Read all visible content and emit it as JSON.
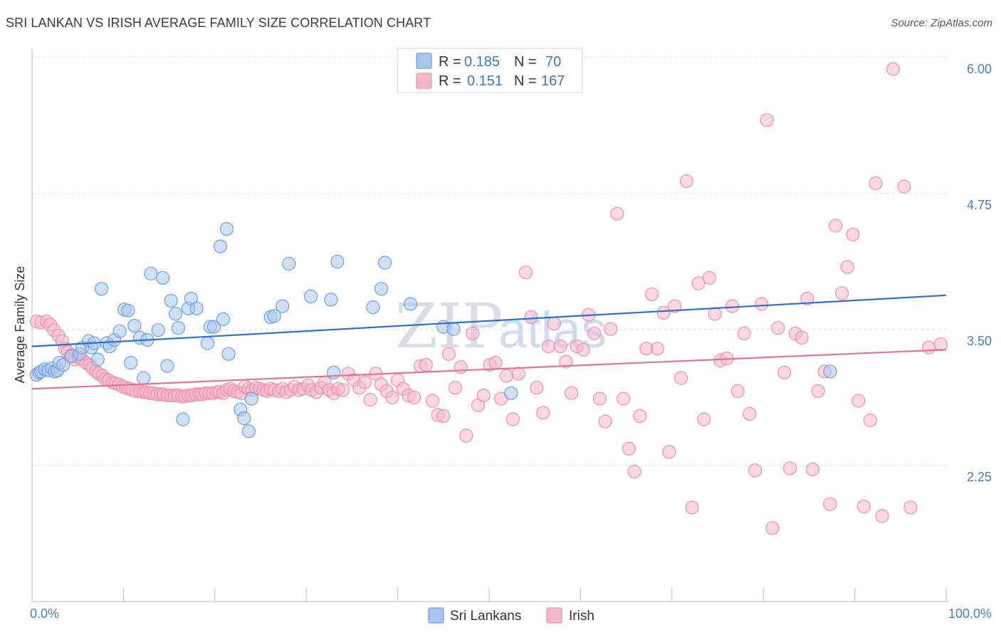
{
  "header": {
    "title": "SRI LANKAN VS IRISH AVERAGE FAMILY SIZE CORRELATION CHART",
    "source": "Source: ZipAtlas.com"
  },
  "watermark": {
    "zip": "ZIP",
    "atlas": "atlas"
  },
  "legend": {
    "rows": [
      {
        "r_label": "R =",
        "r_value": "0.185",
        "n_label": "N =",
        "n_value": "70"
      },
      {
        "r_label": "R =",
        "r_value": "0.151",
        "n_label": "N =",
        "n_value": "167"
      }
    ]
  },
  "bottom_legend": {
    "items": [
      "Sri Lankans",
      "Irish"
    ]
  },
  "colors": {
    "blue_fill": "#a9c6ee",
    "blue_stroke": "#6f9fdc",
    "blue_line": "#2f6fcc",
    "pink_fill": "#f5b8cb",
    "pink_stroke": "#ea8fae",
    "pink_line": "#e0739a",
    "tick_text": "#4a7cc9",
    "grid": "#d8d8d8"
  },
  "chart_data": {
    "type": "scatter",
    "title": "SRI LANKAN VS IRISH AVERAGE FAMILY SIZE CORRELATION CHART",
    "xlabel": "",
    "ylabel": "Average Family Size",
    "xlim": [
      0,
      100
    ],
    "ylim": [
      1.0,
      6.15
    ],
    "x_tick_labels": [
      "0.0%",
      "100.0%"
    ],
    "y_ticks": [
      2.25,
      3.5,
      4.75,
      6.0
    ],
    "y_tick_labels": [
      "2.25",
      "3.50",
      "4.75",
      "6.00"
    ],
    "grid": true,
    "legend_position": "top-center",
    "series": [
      {
        "name": "Sri Lankans",
        "r": 0.185,
        "n": 70,
        "trend": {
          "x0": 0,
          "y0": 3.45,
          "x1": 100,
          "y1": 3.92
        },
        "points": [
          [
            0.5,
            3.19
          ],
          [
            0.8,
            3.21
          ],
          [
            1.0,
            3.22
          ],
          [
            1.4,
            3.24
          ],
          [
            1.8,
            3.23
          ],
          [
            2.2,
            3.25
          ],
          [
            2.5,
            3.22
          ],
          [
            2.8,
            3.23
          ],
          [
            3.0,
            3.3
          ],
          [
            3.4,
            3.28
          ],
          [
            4.3,
            3.36
          ],
          [
            5.2,
            3.38
          ],
          [
            5.5,
            3.44
          ],
          [
            6.2,
            3.5
          ],
          [
            6.5,
            3.44
          ],
          [
            6.8,
            3.48
          ],
          [
            7.2,
            3.33
          ],
          [
            7.6,
            3.98
          ],
          [
            8.2,
            3.48
          ],
          [
            8.5,
            3.45
          ],
          [
            9.0,
            3.51
          ],
          [
            9.6,
            3.59
          ],
          [
            10.1,
            3.79
          ],
          [
            10.5,
            3.78
          ],
          [
            10.8,
            3.3
          ],
          [
            11.2,
            3.64
          ],
          [
            11.8,
            3.53
          ],
          [
            12.2,
            3.16
          ],
          [
            12.6,
            3.51
          ],
          [
            13.0,
            4.12
          ],
          [
            13.8,
            3.6
          ],
          [
            14.3,
            4.08
          ],
          [
            14.8,
            3.27
          ],
          [
            15.2,
            3.87
          ],
          [
            15.7,
            3.75
          ],
          [
            16.0,
            3.62
          ],
          [
            16.5,
            2.78
          ],
          [
            17.1,
            3.8
          ],
          [
            17.4,
            3.89
          ],
          [
            18.0,
            3.8
          ],
          [
            19.2,
            3.48
          ],
          [
            19.5,
            3.63
          ],
          [
            19.9,
            3.63
          ],
          [
            20.6,
            4.37
          ],
          [
            20.9,
            3.7
          ],
          [
            21.3,
            4.53
          ],
          [
            21.5,
            3.38
          ],
          [
            22.8,
            2.87
          ],
          [
            23.2,
            2.79
          ],
          [
            23.7,
            2.67
          ],
          [
            24.0,
            2.97
          ],
          [
            26.1,
            3.72
          ],
          [
            26.5,
            3.73
          ],
          [
            27.4,
            3.82
          ],
          [
            28.1,
            4.21
          ],
          [
            30.5,
            3.91
          ],
          [
            32.7,
            3.88
          ],
          [
            33.0,
            3.21
          ],
          [
            33.4,
            4.23
          ],
          [
            37.3,
            3.81
          ],
          [
            38.2,
            3.98
          ],
          [
            38.6,
            4.22
          ],
          [
            41.4,
            3.84
          ],
          [
            45.0,
            3.63
          ],
          [
            46.1,
            3.61
          ],
          [
            52.4,
            3.02
          ],
          [
            87.3,
            3.22
          ]
        ]
      },
      {
        "name": "Irish",
        "r": 0.151,
        "n": 167,
        "trend": {
          "x0": 0,
          "y0": 3.06,
          "x1": 100,
          "y1": 3.42
        },
        "points": [
          [
            0.5,
            3.68
          ],
          [
            1.0,
            3.67
          ],
          [
            1.6,
            3.68
          ],
          [
            2.0,
            3.65
          ],
          [
            2.4,
            3.6
          ],
          [
            2.9,
            3.55
          ],
          [
            3.3,
            3.5
          ],
          [
            3.6,
            3.43
          ],
          [
            3.9,
            3.4
          ],
          [
            4.3,
            3.37
          ],
          [
            4.7,
            3.33
          ],
          [
            5.1,
            3.35
          ],
          [
            5.5,
            3.33
          ],
          [
            5.9,
            3.3
          ],
          [
            6.3,
            3.28
          ],
          [
            6.6,
            3.25
          ],
          [
            7.0,
            3.22
          ],
          [
            7.3,
            3.2
          ],
          [
            7.7,
            3.18
          ],
          [
            8.0,
            3.15
          ],
          [
            8.4,
            3.14
          ],
          [
            8.8,
            3.12
          ],
          [
            9.1,
            3.11
          ],
          [
            9.5,
            3.1
          ],
          [
            9.9,
            3.08
          ],
          [
            10.3,
            3.07
          ],
          [
            10.6,
            3.06
          ],
          [
            11.0,
            3.05
          ],
          [
            11.4,
            3.04
          ],
          [
            11.8,
            3.04
          ],
          [
            12.2,
            3.03
          ],
          [
            12.5,
            3.03
          ],
          [
            12.9,
            3.02
          ],
          [
            13.3,
            3.02
          ],
          [
            13.7,
            3.01
          ],
          [
            14.1,
            3.01
          ],
          [
            14.4,
            3.01
          ],
          [
            14.8,
            3.0
          ],
          [
            15.2,
            3.0
          ],
          [
            15.6,
            3.0
          ],
          [
            16.0,
            3.0
          ],
          [
            16.4,
            2.99
          ],
          [
            16.7,
            2.99
          ],
          [
            17.1,
            3.0
          ],
          [
            17.5,
            3.0
          ],
          [
            17.9,
            3.01
          ],
          [
            18.3,
            3.01
          ],
          [
            18.6,
            3.01
          ],
          [
            19.0,
            3.02
          ],
          [
            19.4,
            3.02
          ],
          [
            19.8,
            3.02
          ],
          [
            20.2,
            3.03
          ],
          [
            20.5,
            3.03
          ],
          [
            20.9,
            3.02
          ],
          [
            21.3,
            3.05
          ],
          [
            21.7,
            3.06
          ],
          [
            22.1,
            3.04
          ],
          [
            22.5,
            3.03
          ],
          [
            22.9,
            3.02
          ],
          [
            23.3,
            3.08
          ],
          [
            23.7,
            3.06
          ],
          [
            24.1,
            3.05
          ],
          [
            24.5,
            3.07
          ],
          [
            24.9,
            3.06
          ],
          [
            25.3,
            3.05
          ],
          [
            25.7,
            3.04
          ],
          [
            26.1,
            3.06
          ],
          [
            26.5,
            3.05
          ],
          [
            27.0,
            3.04
          ],
          [
            27.4,
            3.06
          ],
          [
            27.8,
            3.03
          ],
          [
            28.3,
            3.05
          ],
          [
            28.7,
            3.08
          ],
          [
            29.2,
            3.05
          ],
          [
            29.7,
            3.06
          ],
          [
            30.2,
            3.09
          ],
          [
            30.6,
            3.05
          ],
          [
            31.1,
            3.03
          ],
          [
            31.6,
            3.07
          ],
          [
            32.0,
            3.12
          ],
          [
            32.5,
            3.05
          ],
          [
            33.0,
            3.02
          ],
          [
            33.5,
            3.06
          ],
          [
            34.0,
            3.05
          ],
          [
            34.6,
            3.2
          ],
          [
            35.2,
            3.14
          ],
          [
            35.8,
            3.07
          ],
          [
            36.4,
            3.12
          ],
          [
            37.0,
            2.96
          ],
          [
            37.6,
            3.2
          ],
          [
            38.2,
            3.1
          ],
          [
            38.8,
            3.04
          ],
          [
            39.4,
            2.98
          ],
          [
            40.0,
            3.14
          ],
          [
            40.6,
            3.06
          ],
          [
            41.2,
            3.0
          ],
          [
            41.8,
            2.98
          ],
          [
            42.5,
            3.27
          ],
          [
            43.1,
            3.28
          ],
          [
            43.8,
            2.95
          ],
          [
            44.4,
            2.82
          ],
          [
            45.0,
            2.81
          ],
          [
            45.6,
            3.38
          ],
          [
            46.3,
            3.07
          ],
          [
            46.9,
            3.26
          ],
          [
            47.5,
            2.63
          ],
          [
            48.2,
            3.57
          ],
          [
            48.8,
            2.91
          ],
          [
            49.4,
            3.0
          ],
          [
            50.1,
            3.28
          ],
          [
            50.7,
            3.3
          ],
          [
            51.3,
            2.97
          ],
          [
            51.9,
            3.18
          ],
          [
            52.6,
            2.78
          ],
          [
            53.2,
            3.2
          ],
          [
            54.0,
            4.13
          ],
          [
            54.6,
            3.72
          ],
          [
            55.2,
            3.07
          ],
          [
            55.9,
            2.84
          ],
          [
            56.5,
            3.45
          ],
          [
            57.1,
            3.66
          ],
          [
            57.8,
            3.45
          ],
          [
            58.4,
            3.31
          ],
          [
            59.0,
            3.02
          ],
          [
            59.6,
            3.45
          ],
          [
            60.3,
            3.42
          ],
          [
            60.9,
            3.74
          ],
          [
            61.5,
            3.57
          ],
          [
            62.1,
            2.97
          ],
          [
            62.7,
            2.76
          ],
          [
            63.3,
            3.61
          ],
          [
            64.0,
            4.67
          ],
          [
            64.7,
            2.97
          ],
          [
            65.3,
            2.51
          ],
          [
            65.9,
            2.3
          ],
          [
            66.5,
            2.81
          ],
          [
            67.2,
            3.43
          ],
          [
            67.8,
            3.93
          ],
          [
            68.4,
            3.43
          ],
          [
            69.1,
            3.76
          ],
          [
            69.7,
            2.48
          ],
          [
            70.3,
            3.82
          ],
          [
            71.0,
            3.16
          ],
          [
            71.6,
            4.97
          ],
          [
            72.2,
            1.97
          ],
          [
            72.9,
            4.03
          ],
          [
            73.5,
            2.78
          ],
          [
            74.1,
            4.08
          ],
          [
            74.7,
            3.75
          ],
          [
            75.3,
            3.32
          ],
          [
            76.0,
            3.34
          ],
          [
            76.6,
            3.82
          ],
          [
            77.2,
            3.04
          ],
          [
            77.9,
            3.57
          ],
          [
            78.5,
            2.83
          ],
          [
            79.1,
            2.31
          ],
          [
            79.8,
            3.84
          ],
          [
            80.4,
            5.53
          ],
          [
            81.0,
            1.78
          ],
          [
            81.6,
            3.62
          ],
          [
            82.3,
            3.21
          ],
          [
            82.9,
            2.33
          ],
          [
            83.5,
            3.57
          ],
          [
            84.2,
            3.53
          ],
          [
            84.8,
            3.89
          ],
          [
            85.4,
            2.32
          ],
          [
            86.0,
            3.04
          ],
          [
            86.7,
            3.22
          ],
          [
            87.3,
            2.0
          ],
          [
            87.9,
            4.56
          ],
          [
            88.6,
            3.94
          ],
          [
            89.2,
            4.18
          ],
          [
            89.8,
            4.48
          ],
          [
            90.4,
            2.95
          ],
          [
            91.0,
            1.98
          ],
          [
            91.7,
            2.77
          ],
          [
            92.3,
            4.95
          ],
          [
            93.0,
            1.89
          ],
          [
            94.2,
            6.0
          ],
          [
            95.4,
            4.92
          ],
          [
            96.1,
            1.97
          ],
          [
            98.1,
            3.44
          ],
          [
            99.4,
            3.47
          ]
        ]
      }
    ]
  }
}
